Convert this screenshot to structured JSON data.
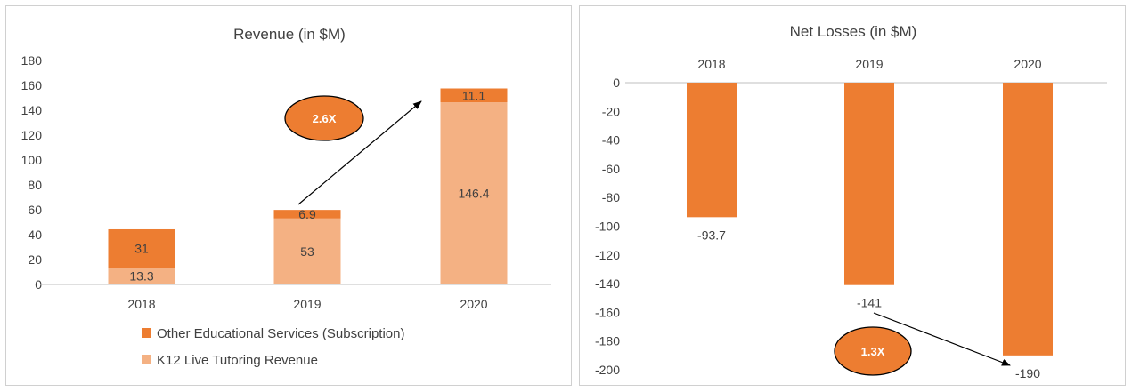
{
  "colors": {
    "other_services": "#ED7D31",
    "k12_tutoring": "#F4B183",
    "loss_bar": "#ED7D31",
    "axis_line": "#BFBFBF",
    "arrow": "#000000"
  },
  "chart_data": [
    {
      "type": "bar",
      "stacked": true,
      "title": "Revenue (in $M)",
      "categories": [
        "2018",
        "2019",
        "2020"
      ],
      "series": [
        {
          "name": "K12 Live Tutoring Revenue",
          "values": [
            13.3,
            53,
            146.4
          ],
          "labels": [
            "13.3",
            "53",
            "146.4"
          ],
          "color": "#F4B183"
        },
        {
          "name": "Other Educational Services (Subscription)",
          "values": [
            31,
            6.9,
            11.1
          ],
          "labels": [
            "31",
            "6.9",
            "11.1"
          ],
          "color": "#ED7D31"
        }
      ],
      "ylim": [
        0,
        180
      ],
      "yticks": [
        "0",
        "20",
        "40",
        "60",
        "80",
        "100",
        "120",
        "140",
        "160",
        "180"
      ],
      "grid": false,
      "legend": "bottom",
      "annotation": {
        "text": "2.6X",
        "from_category": "2019",
        "to_category": "2020"
      }
    },
    {
      "type": "bar",
      "title": "Net Losses (in $M)",
      "categories": [
        "2018",
        "2019",
        "2020"
      ],
      "series": [
        {
          "values": [
            -93.7,
            -141,
            -190
          ],
          "labels": [
            "-93.7",
            "-141",
            "-190"
          ],
          "color": "#ED7D31"
        }
      ],
      "ylim": [
        -200,
        0
      ],
      "yticks": [
        "0",
        "-20",
        "-40",
        "-60",
        "-80",
        "-100",
        "-120",
        "-140",
        "-160",
        "-180",
        "-200"
      ],
      "xaxis_position": "top",
      "grid": false,
      "annotation": {
        "text": "1.3X",
        "from_category": "2019",
        "to_category": "2020"
      }
    }
  ]
}
